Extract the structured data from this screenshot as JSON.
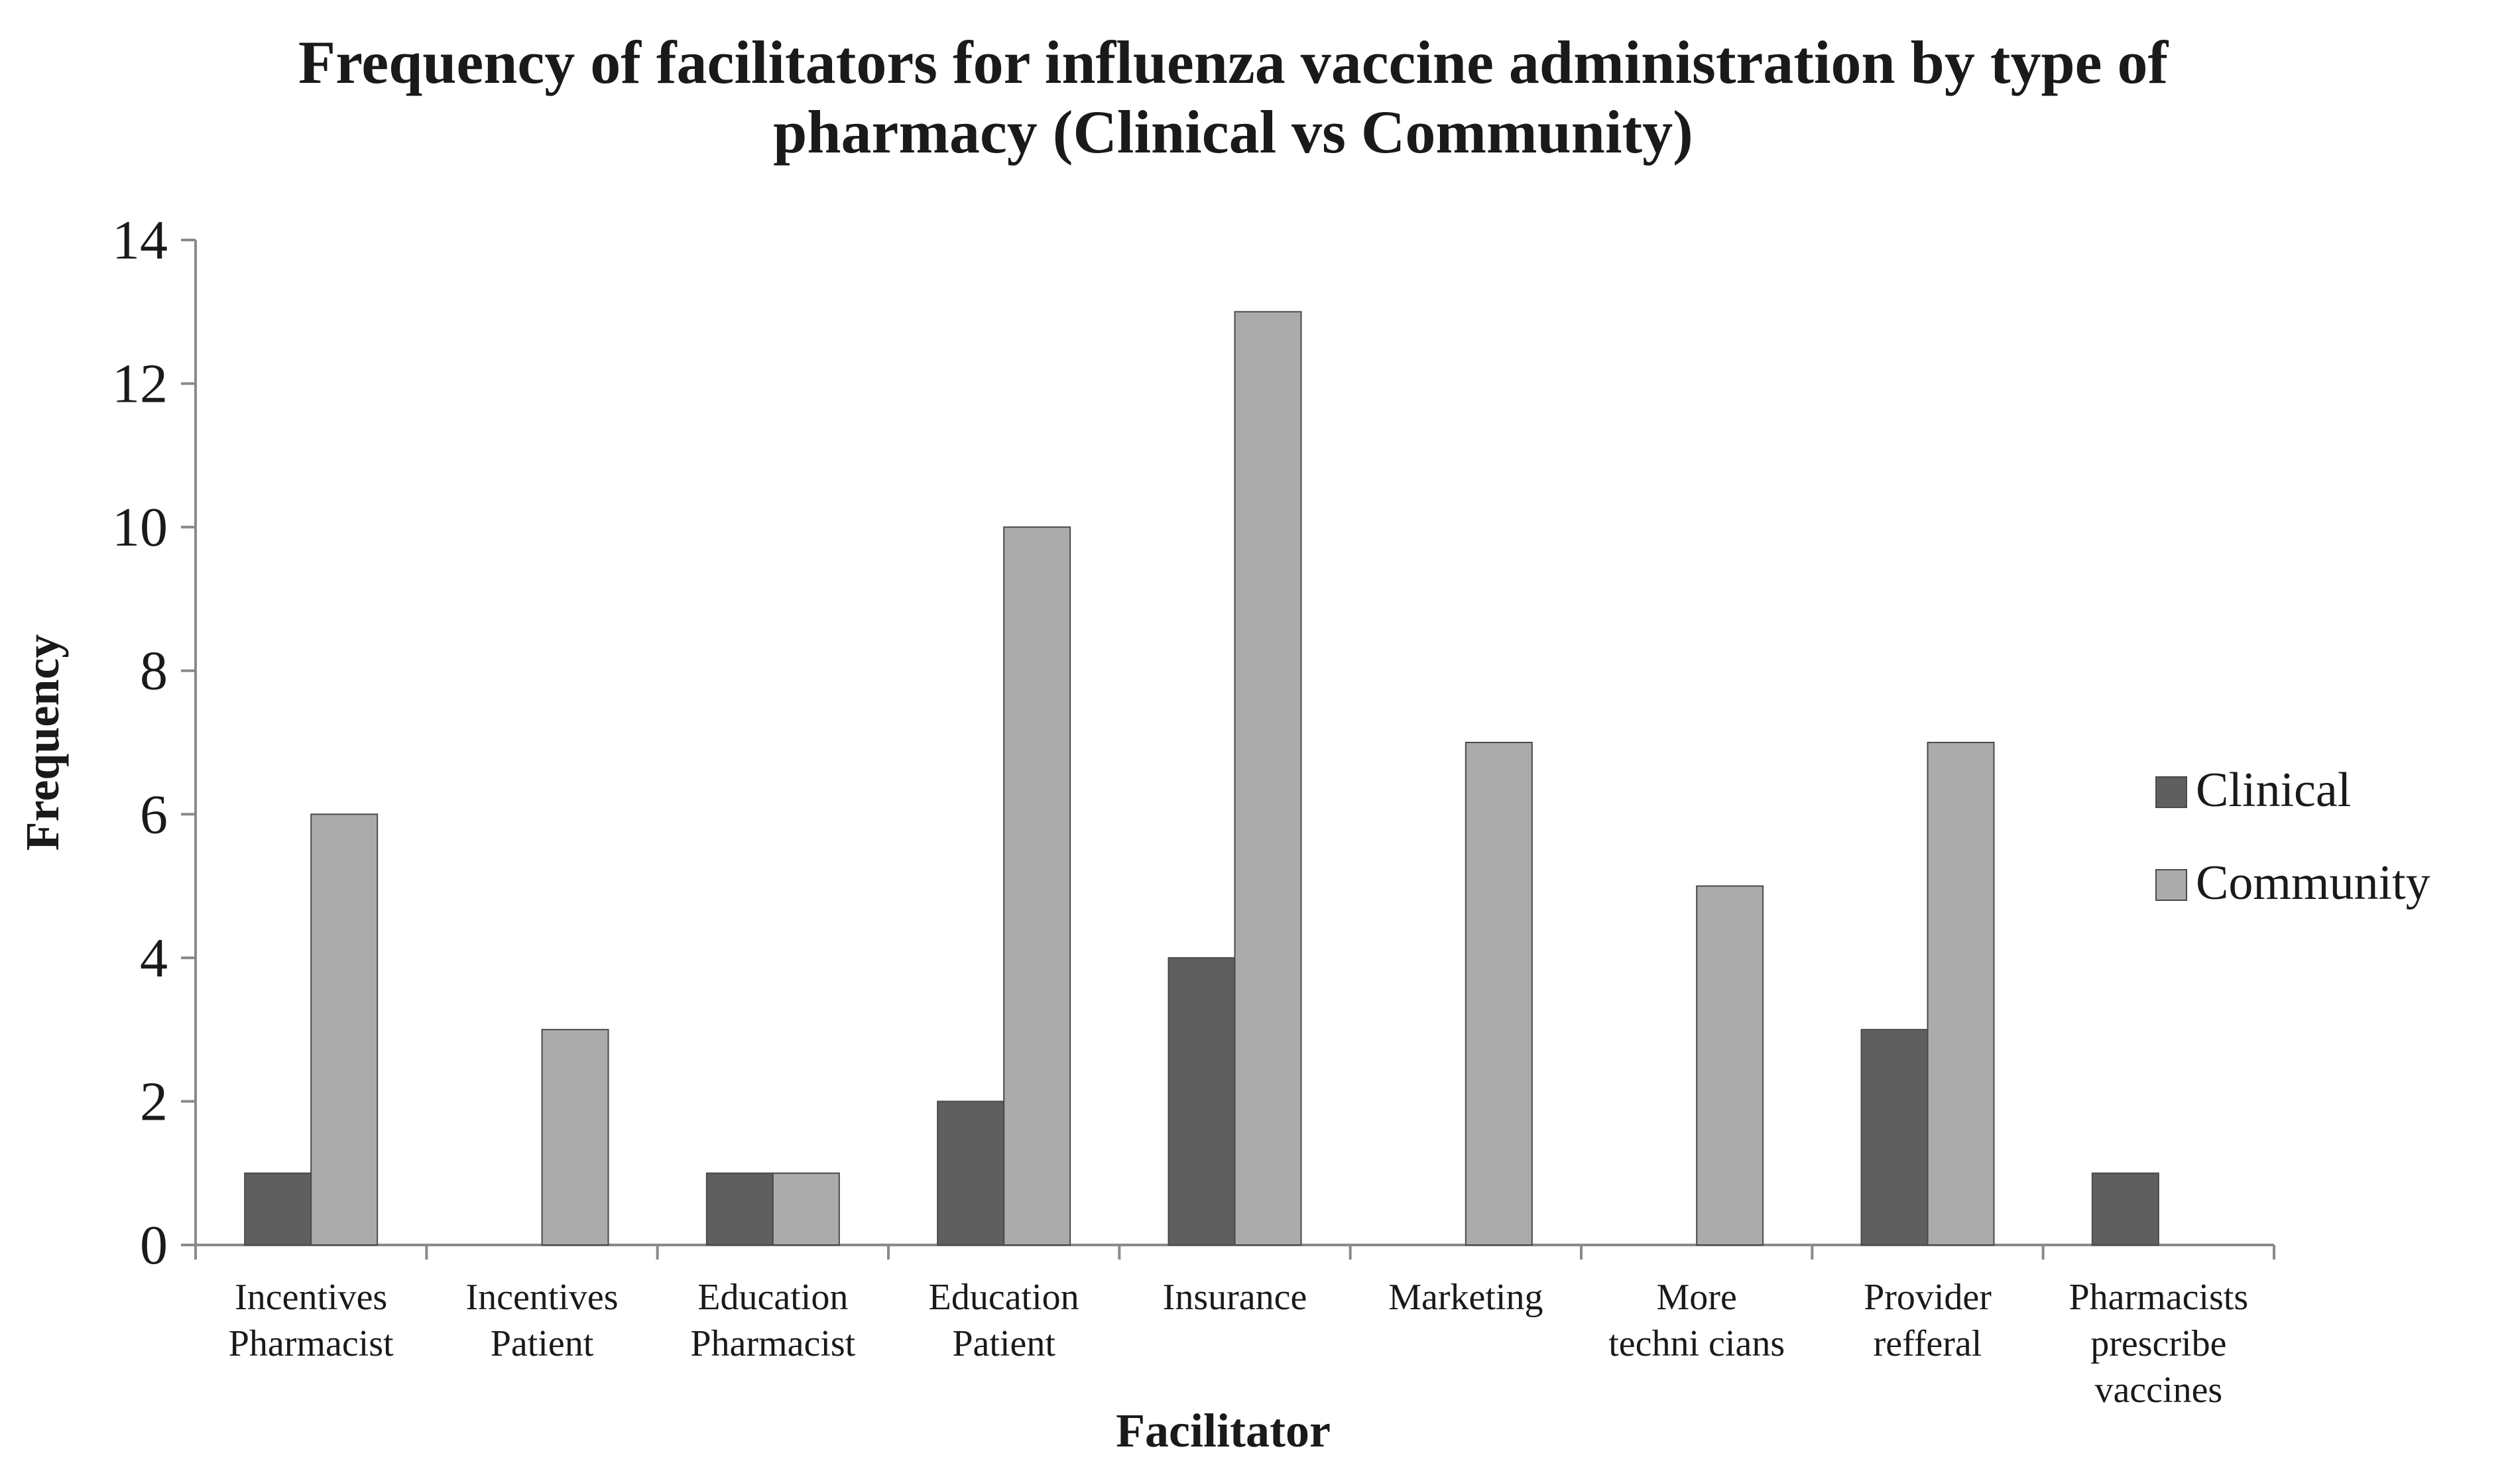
{
  "chart_data": {
    "type": "bar",
    "title": "Frequency of facilitators for influenza vaccine administration by type of pharmacy (Clinical vs Community)",
    "title_lines": [
      "Frequency of facilitators for influenza vaccine administration by type of",
      "pharmacy (Clinical vs Community)"
    ],
    "xlabel": "Facilitator",
    "ylabel": "Frequency",
    "ylim": [
      0,
      14
    ],
    "yticks": [
      0,
      2,
      4,
      6,
      8,
      10,
      12,
      14
    ],
    "grid": false,
    "legend_position": "right",
    "categories": [
      [
        "Incentives",
        "Pharmacist"
      ],
      [
        "Incentives",
        "Patient"
      ],
      [
        "Education",
        "Pharmacist"
      ],
      [
        "Education",
        "Patient"
      ],
      [
        "Insurance"
      ],
      [
        "Marketing"
      ],
      [
        "More",
        "techni cians"
      ],
      [
        "Provider",
        "refferal"
      ],
      [
        "Pharmacists",
        "prescribe",
        "vaccines"
      ]
    ],
    "series": [
      {
        "name": "Clinical",
        "color": "#5f5f5f",
        "values": [
          1,
          0,
          1,
          2,
          4,
          0,
          0,
          3,
          1
        ]
      },
      {
        "name": "Community",
        "color": "#ababab",
        "values": [
          6,
          3,
          1,
          10,
          13,
          7,
          5,
          7,
          0
        ]
      }
    ]
  }
}
